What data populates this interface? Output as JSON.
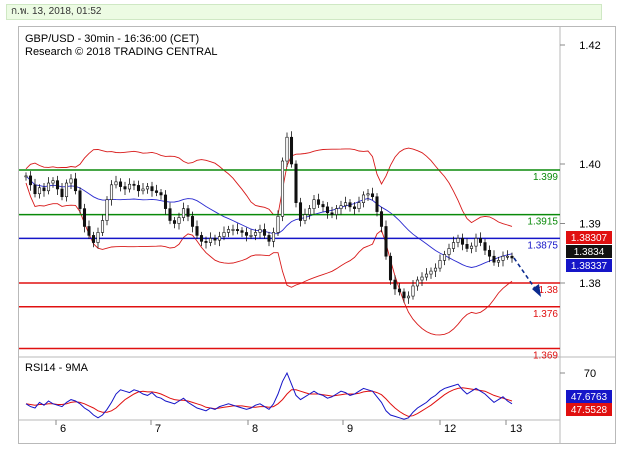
{
  "header": {
    "datetime": "ก.พ. 13, 2018, 01:52"
  },
  "chart_data": [
    {
      "type": "candlestick",
      "title": "GBP/USD - 30min - 16:36:00 (CET)",
      "subtitle": "Research © 2018 TRADING CENTRAL",
      "ylim": [
        1.364,
        1.425
      ],
      "y_ticks": [
        "1.42",
        "1.40",
        "1.39",
        "1.38"
      ],
      "y_tick_values": [
        1.42,
        1.4,
        1.39,
        1.38
      ],
      "x_ticks": [
        "6",
        "7",
        "8",
        "9",
        "12",
        "13"
      ],
      "levels": [
        {
          "value": 1.399,
          "label": "1.399",
          "color": "#0a8a0a"
        },
        {
          "value": 1.3915,
          "label": "1.3915",
          "color": "#0a8a0a"
        },
        {
          "value": 1.3875,
          "label": "1.3875",
          "color": "#1515c8"
        },
        {
          "value": 1.38,
          "label": "1.38",
          "color": "#e01010"
        },
        {
          "value": 1.376,
          "label": "1.376",
          "color": "#e01010"
        },
        {
          "value": 1.369,
          "label": "1.369",
          "color": "#e01010"
        }
      ],
      "price_tags": [
        {
          "label": "1.38307",
          "color": "#e01010"
        },
        {
          "label": "1.3834",
          "color": "#111111"
        },
        {
          "label": "1.38337",
          "color": "#1515c8"
        }
      ],
      "close_series": [
        1.398,
        1.3965,
        1.395,
        1.396,
        1.3955,
        1.3968,
        1.3972,
        1.3958,
        1.3945,
        1.3968,
        1.3975,
        1.3955,
        1.3925,
        1.3895,
        1.388,
        1.3868,
        1.3885,
        1.3905,
        1.394,
        1.3965,
        1.397,
        1.3962,
        1.3958,
        1.3966,
        1.3964,
        1.3955,
        1.3958,
        1.3962,
        1.3955,
        1.3952,
        1.3948,
        1.3925,
        1.3905,
        1.39,
        1.391,
        1.3925,
        1.3912,
        1.3895,
        1.388,
        1.387,
        1.3868,
        1.3875,
        1.3872,
        1.3878,
        1.3885,
        1.389,
        1.389,
        1.3888,
        1.3885,
        1.388,
        1.388,
        1.3885,
        1.389,
        1.388,
        1.387,
        1.3885,
        1.3912,
        1.4005,
        1.4045,
        1.4,
        1.3935,
        1.3905,
        1.3915,
        1.3925,
        1.394,
        1.3932,
        1.3928,
        1.3918,
        1.3915,
        1.3925,
        1.393,
        1.3935,
        1.3928,
        1.3925,
        1.3935,
        1.3948,
        1.395,
        1.3945,
        1.392,
        1.3895,
        1.3845,
        1.3805,
        1.379,
        1.3785,
        1.3775,
        1.3778,
        1.3795,
        1.3805,
        1.381,
        1.3815,
        1.382,
        1.3825,
        1.3838,
        1.3848,
        1.3858,
        1.3868,
        1.3875,
        1.3865,
        1.3858,
        1.3862,
        1.3875,
        1.3868,
        1.3855,
        1.3845,
        1.3835,
        1.3838,
        1.3845,
        1.3845,
        1.3842
      ],
      "rsi_ticks": [
        "70"
      ],
      "rsi_label": "RSI14 - 9MA",
      "rsi_tags": [
        {
          "label": "47.6763",
          "color": "#1515c8"
        },
        {
          "label": "47.5528",
          "color": "#e01010"
        }
      ],
      "rsi_series": [
        48,
        46,
        45,
        49,
        47,
        50,
        48,
        47,
        46,
        49,
        51,
        50,
        48,
        45,
        43,
        40,
        38,
        40,
        44,
        49,
        55,
        58,
        57,
        56,
        58,
        57,
        55,
        54,
        56,
        53,
        52,
        50,
        49,
        48,
        50,
        52,
        49,
        47,
        45,
        44,
        43,
        45,
        44,
        46,
        47,
        48,
        47,
        46,
        45,
        44,
        45,
        47,
        48,
        46,
        44,
        48,
        55,
        64,
        70,
        62,
        54,
        51,
        53,
        55,
        57,
        55,
        54,
        52,
        53,
        55,
        57,
        56,
        54,
        55,
        57,
        59,
        58,
        57,
        53,
        49,
        43,
        40,
        39,
        38,
        37,
        38,
        42,
        45,
        47,
        49,
        52,
        54,
        57,
        59,
        60,
        61,
        62,
        58,
        55,
        57,
        59,
        57,
        55,
        52,
        49,
        51,
        53,
        50,
        48
      ],
      "ma_series": [
        48,
        47.5,
        47,
        47.5,
        47.5,
        48,
        48,
        47.5,
        47.5,
        48,
        49,
        49.5,
        49,
        48,
        46.5,
        45,
        43,
        42,
        42,
        43,
        45,
        48,
        51,
        53,
        55,
        56.5,
        57,
        56.5,
        56.5,
        56,
        55,
        53.5,
        52,
        51,
        50.5,
        50.5,
        50,
        49,
        48,
        47,
        45.5,
        45,
        44.5,
        45,
        45.5,
        46,
        46.5,
        46.5,
        46.5,
        46,
        45.5,
        45.5,
        46,
        46,
        45.5,
        46,
        48,
        51,
        55,
        58,
        58,
        57,
        56,
        55,
        55,
        55,
        54.5,
        54,
        53.5,
        54,
        54.5,
        55,
        55,
        55,
        55.5,
        56.5,
        57,
        57,
        56,
        54.5,
        51.5,
        48,
        45,
        42.5,
        40.5,
        39,
        39.5,
        41,
        43,
        45,
        47,
        49.5,
        52,
        54.5,
        56.5,
        58,
        59,
        59.5,
        59,
        58.5,
        58,
        57.5,
        57,
        55.5,
        54,
        53,
        52,
        51,
        50
      ]
    }
  ]
}
